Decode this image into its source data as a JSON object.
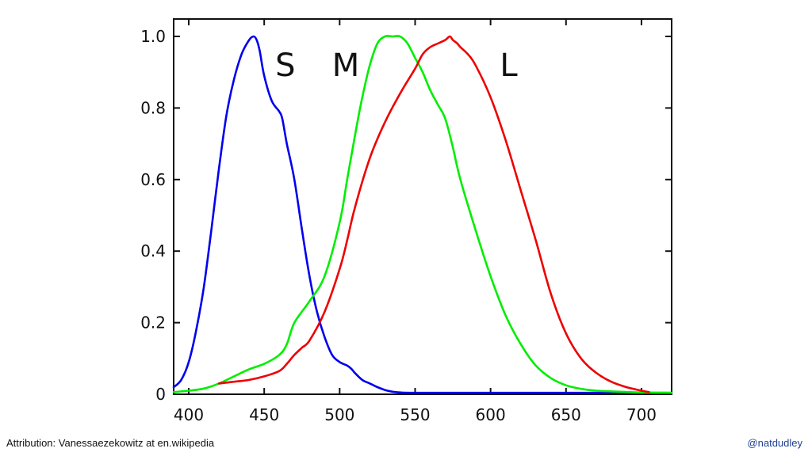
{
  "footer": {
    "attribution": "Attribution: Vanessaezekowitz at en.wikipedia",
    "handle": "@natdudley"
  },
  "chart_data": {
    "type": "line",
    "title": "",
    "xlabel": "",
    "ylabel": "",
    "xlim": [
      390,
      720
    ],
    "ylim": [
      0,
      1.0
    ],
    "x_ticks": [
      400,
      450,
      500,
      550,
      600,
      650,
      700
    ],
    "y_ticks": [
      0,
      0.2,
      0.4,
      0.6,
      0.8,
      1.0
    ],
    "y_tick_labels": [
      "0",
      "0.2",
      "0.4",
      "0.6",
      "0.8",
      "1.0"
    ],
    "grid": false,
    "series": [
      {
        "name": "S",
        "color": "#0000ee",
        "x": [
          390,
          395,
          400,
          405,
          410,
          415,
          420,
          425,
          430,
          435,
          440,
          443,
          445,
          447,
          450,
          455,
          460,
          462,
          465,
          470,
          475,
          480,
          485,
          490,
          495,
          500,
          505,
          508,
          510,
          515,
          520,
          525,
          530,
          535,
          540,
          550,
          600,
          650,
          700,
          720
        ],
        "y": [
          0.02,
          0.04,
          0.09,
          0.18,
          0.3,
          0.46,
          0.63,
          0.78,
          0.88,
          0.95,
          0.99,
          1.0,
          0.99,
          0.96,
          0.89,
          0.82,
          0.79,
          0.77,
          0.7,
          0.6,
          0.46,
          0.33,
          0.23,
          0.16,
          0.11,
          0.09,
          0.08,
          0.07,
          0.06,
          0.04,
          0.03,
          0.02,
          0.012,
          0.007,
          0.005,
          0.004,
          0.004,
          0.004,
          0.004,
          0.004
        ]
      },
      {
        "name": "M",
        "color": "#00ee00",
        "x": [
          390,
          400,
          410,
          420,
          430,
          440,
          450,
          460,
          465,
          470,
          480,
          490,
          500,
          505,
          510,
          515,
          520,
          525,
          530,
          535,
          540,
          545,
          550,
          555,
          560,
          565,
          570,
          575,
          580,
          590,
          600,
          610,
          620,
          630,
          640,
          650,
          660,
          670,
          680,
          700,
          720
        ],
        "y": [
          0.006,
          0.01,
          0.016,
          0.03,
          0.05,
          0.07,
          0.085,
          0.11,
          0.14,
          0.2,
          0.26,
          0.33,
          0.48,
          0.6,
          0.72,
          0.83,
          0.92,
          0.98,
          1.0,
          1.0,
          1.0,
          0.98,
          0.94,
          0.9,
          0.85,
          0.81,
          0.77,
          0.69,
          0.6,
          0.46,
          0.33,
          0.22,
          0.14,
          0.08,
          0.045,
          0.025,
          0.015,
          0.01,
          0.008,
          0.005,
          0.004
        ]
      },
      {
        "name": "L",
        "color": "#ee0000",
        "x": [
          420,
          430,
          440,
          450,
          460,
          465,
          470,
          475,
          480,
          490,
          500,
          505,
          510,
          520,
          530,
          540,
          550,
          555,
          560,
          565,
          570,
          573,
          575,
          578,
          580,
          585,
          590,
          600,
          610,
          620,
          630,
          640,
          650,
          660,
          670,
          680,
          690,
          700,
          705
        ],
        "y": [
          0.03,
          0.035,
          0.04,
          0.05,
          0.065,
          0.085,
          0.11,
          0.13,
          0.15,
          0.23,
          0.35,
          0.43,
          0.52,
          0.66,
          0.76,
          0.84,
          0.91,
          0.95,
          0.97,
          0.98,
          0.99,
          1.0,
          0.99,
          0.98,
          0.97,
          0.95,
          0.92,
          0.83,
          0.71,
          0.57,
          0.43,
          0.28,
          0.17,
          0.1,
          0.06,
          0.035,
          0.02,
          0.01,
          0.006
        ]
      }
    ],
    "annotations": [
      {
        "text": "S",
        "x": 464,
        "y": 0.92
      },
      {
        "text": "M",
        "x": 504,
        "y": 0.92
      },
      {
        "text": "L",
        "x": 612,
        "y": 0.92
      }
    ]
  }
}
